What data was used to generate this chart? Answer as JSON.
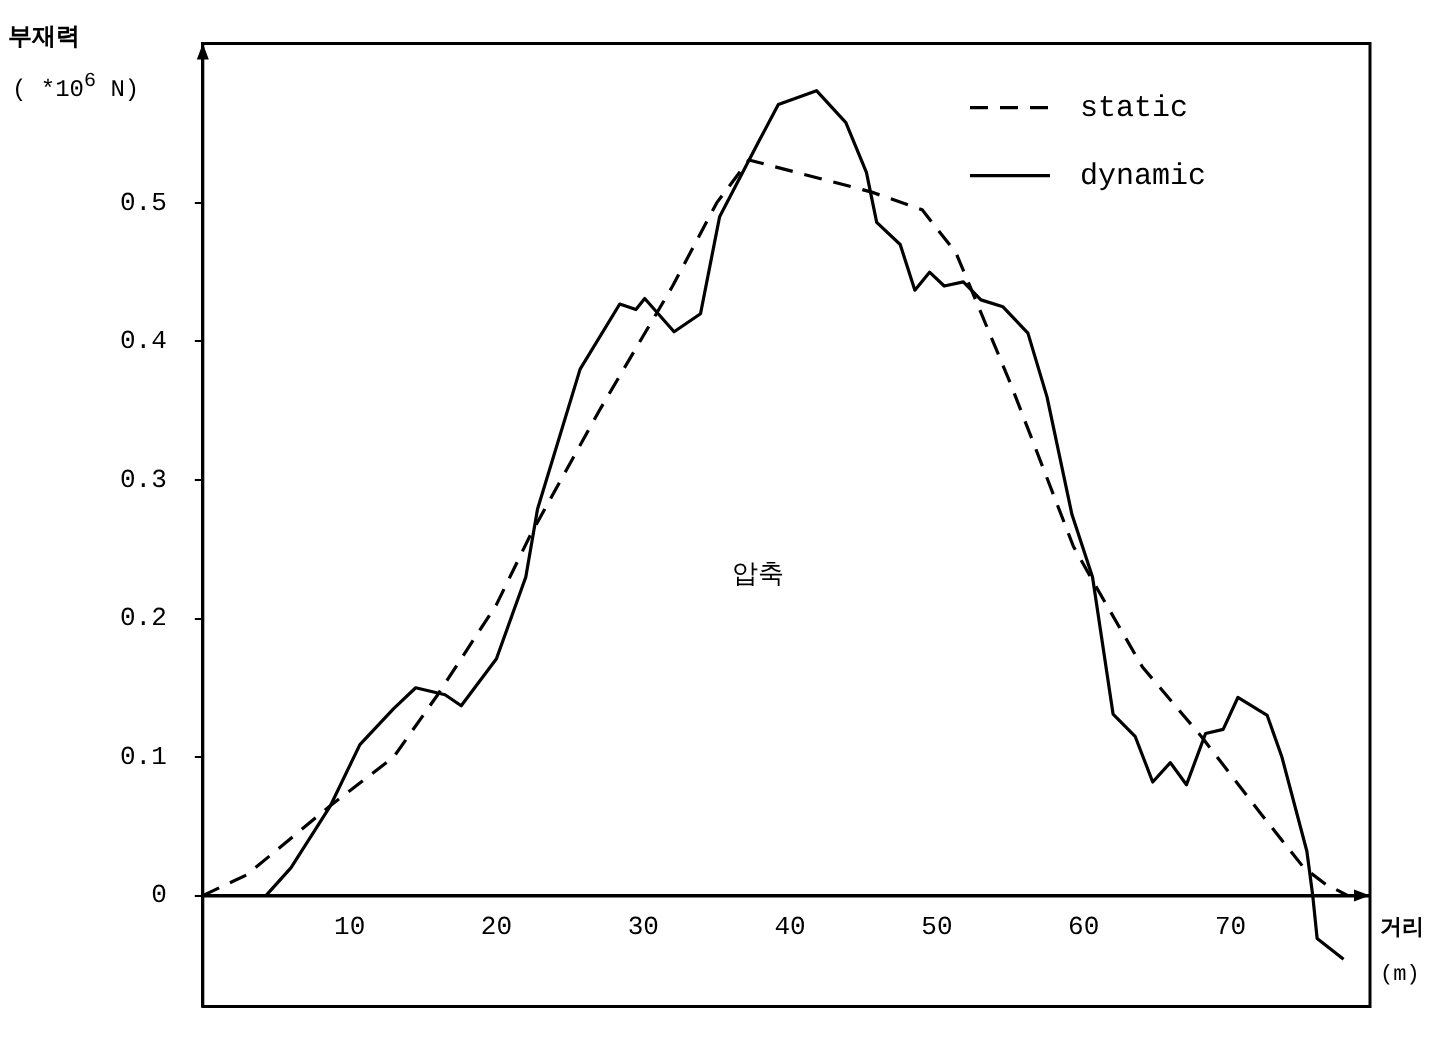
{
  "chart_data": {
    "type": "line",
    "ylabel": "부재력",
    "subtitle": "( *10$^{6}$ N)",
    "xlabel": "거리",
    "annotations": [
      "압축",
      "(m)"
    ],
    "xlim": [
      0,
      79.5
    ],
    "ylim": [
      -0.08,
      0.615
    ],
    "xticks": [
      10,
      20,
      30,
      40,
      50,
      60,
      70
    ],
    "yticks": [
      0,
      0.1,
      0.2,
      0.3,
      0.4,
      0.5
    ],
    "legend": "top right",
    "marker": "none",
    "grid": false,
    "series": [
      {
        "name": "static",
        "color": "#000000",
        "line_style": "dashed",
        "x": [
          0,
          3,
          8.7,
          13,
          16,
          20,
          22.3,
          27,
          32,
          35,
          37.2,
          45.5,
          49,
          51.3,
          55,
          59.3,
          61,
          64,
          68,
          72,
          75,
          76.5,
          78
        ],
        "values": [
          0,
          0.015,
          0.065,
          0.1,
          0.145,
          0.21,
          0.26,
          0.35,
          0.44,
          0.5,
          0.531,
          0.508,
          0.495,
          0.464,
          0.37,
          0.252,
          0.22,
          0.165,
          0.115,
          0.06,
          0.02,
          0.008,
          0
        ]
      },
      {
        "name": "dynamic",
        "color": "#000000",
        "line_style": "solid",
        "x": [
          4.3,
          6,
          8.7,
          10.7,
          13,
          14.5,
          16.5,
          17.6,
          20,
          22,
          22.8,
          25.7,
          28.4,
          29.5,
          30.1,
          32.1,
          33.9,
          35.2,
          37.9,
          39.2,
          41.8,
          43.8,
          45.2,
          45.9,
          47.5,
          48.5,
          49.5,
          50.5,
          51.8,
          53,
          54.5,
          56.2,
          57.5,
          59.2,
          60.6,
          62,
          63.5,
          64.7,
          65.9,
          67,
          68.3,
          69.5,
          70.5,
          72.5,
          73.5,
          75.2,
          75.6,
          75.9,
          77.7
        ],
        "values": [
          0,
          0.02,
          0.065,
          0.109,
          0.135,
          0.15,
          0.145,
          0.137,
          0.171,
          0.23,
          0.279,
          0.38,
          0.427,
          0.423,
          0.431,
          0.407,
          0.42,
          0.49,
          0.545,
          0.571,
          0.581,
          0.558,
          0.522,
          0.486,
          0.47,
          0.437,
          0.45,
          0.44,
          0.443,
          0.43,
          0.425,
          0.406,
          0.36,
          0.275,
          0.23,
          0.131,
          0.115,
          0.082,
          0.096,
          0.08,
          0.117,
          0.12,
          0.143,
          0.13,
          0.1,
          0.032,
          0,
          -0.031,
          -0.046
        ]
      }
    ]
  }
}
